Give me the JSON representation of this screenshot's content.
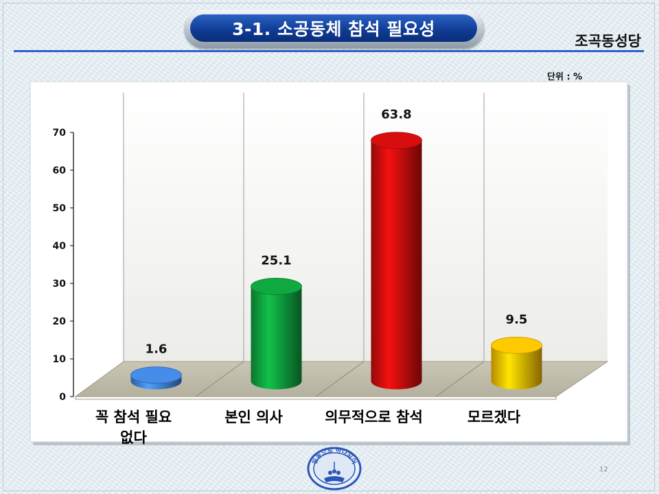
{
  "header": {
    "title": "3-1. 소공동체 참석 필요성",
    "party": "조곡동성당",
    "unit": "단위 : %"
  },
  "footer": {
    "seal_text": "일동으로 하나되어",
    "page_number": "12"
  },
  "chart_data": {
    "type": "bar",
    "categories": [
      "꼭 참석 필요\n없다",
      "본인 의사",
      "의무적으로 참석",
      "모르겠다"
    ],
    "values": [
      1.6,
      25.1,
      63.8,
      9.5
    ],
    "value_labels": [
      "1.6",
      "25.1",
      "63.8",
      "9.5"
    ],
    "ylim": [
      0,
      70
    ],
    "yticks": [
      0,
      10,
      20,
      30,
      40,
      50,
      60,
      70
    ],
    "ytick_labels": [
      "0",
      "10",
      "20",
      "30",
      "40",
      "50",
      "60",
      "70"
    ],
    "grid": "vertical",
    "bar_colors": [
      "#3f7fd6",
      "#0e9a3c",
      "#c40d0d",
      "#f3b800"
    ],
    "bar_style": "3d-cylinder"
  }
}
